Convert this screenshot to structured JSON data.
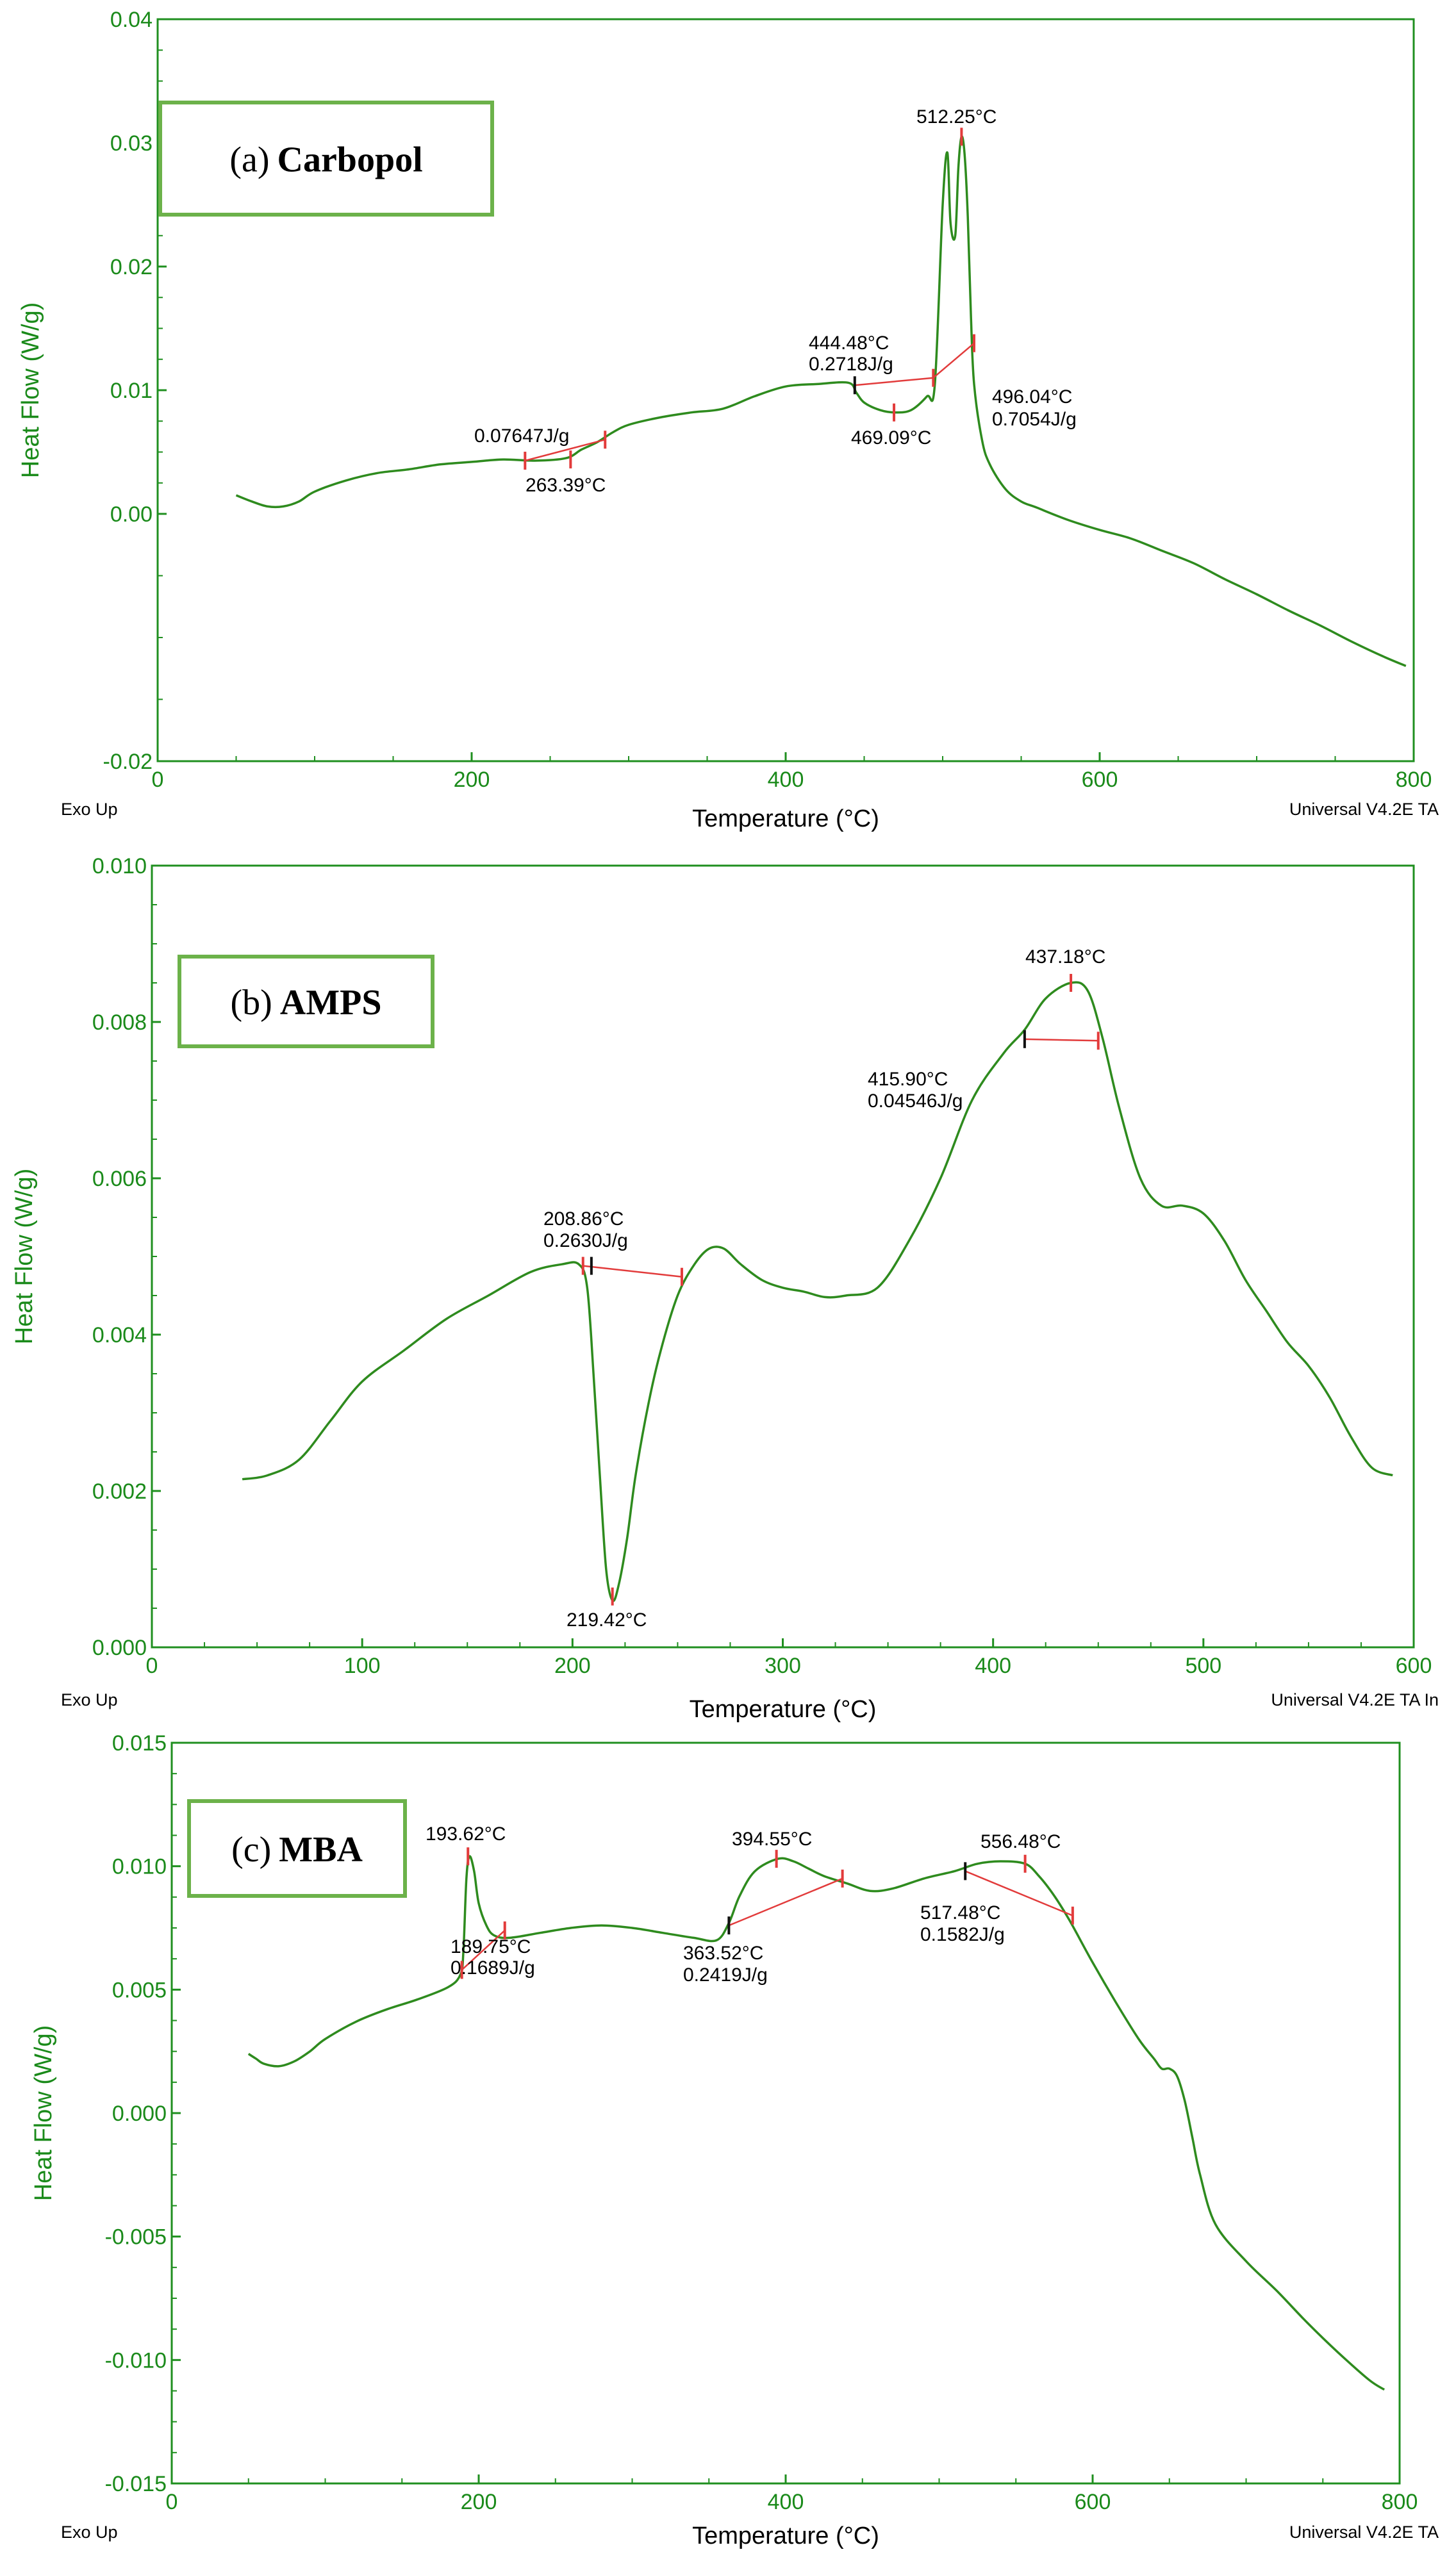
{
  "colors": {
    "curve": "#2e8b1e",
    "axis": "#1f8f1f",
    "axis_text": "#1a8a1a",
    "annotation_line": "#e23b3b",
    "annotation_text": "#000000",
    "title_box": "#6cb24a"
  },
  "chart_data": [
    {
      "type": "line",
      "title": "(a) Carbopol",
      "title_letter": "(a)",
      "title_name": "Carbopol",
      "xlabel": "Temperature (°C)",
      "ylabel": "Heat Flow (W/g)",
      "footer_left": "Exo Up",
      "footer_right": "Universal V4.2E TA",
      "xlim": [
        0,
        800
      ],
      "ylim": [
        -0.02,
        0.04
      ],
      "x_ticks": [
        "0",
        "200",
        "400",
        "600",
        "800"
      ],
      "y_ticks": [
        "-0.02",
        "0.00",
        "0.01",
        "0.02",
        "0.03",
        "0.04"
      ],
      "y_tick_values": [
        -0.02,
        0.0,
        0.01,
        0.02,
        0.03,
        0.04
      ],
      "x_tick_values": [
        0,
        200,
        400,
        600,
        800
      ],
      "series": [
        {
          "name": "Carbopol",
          "x": [
            50,
            60,
            70,
            80,
            90,
            100,
            120,
            140,
            160,
            180,
            200,
            220,
            240,
            260,
            270,
            280,
            290,
            300,
            320,
            340,
            360,
            380,
            400,
            420,
            440,
            445,
            450,
            460,
            470,
            480,
            490,
            495,
            500,
            503,
            505,
            508,
            510,
            512,
            514,
            516,
            518,
            520,
            525,
            530,
            540,
            550,
            560,
            580,
            600,
            620,
            640,
            660,
            680,
            700,
            720,
            740,
            760,
            780,
            795
          ],
          "y": [
            0.0015,
            0.001,
            0.0006,
            0.0006,
            0.001,
            0.0018,
            0.0027,
            0.0033,
            0.0036,
            0.004,
            0.0042,
            0.0044,
            0.0043,
            0.0045,
            0.0052,
            0.0058,
            0.0066,
            0.0072,
            0.0078,
            0.0082,
            0.0085,
            0.0095,
            0.0103,
            0.0105,
            0.0106,
            0.0098,
            0.009,
            0.0084,
            0.0082,
            0.0084,
            0.0095,
            0.0105,
            0.025,
            0.0292,
            0.0235,
            0.0225,
            0.028,
            0.0305,
            0.029,
            0.024,
            0.016,
            0.0105,
            0.006,
            0.004,
            0.002,
            0.001,
            0.0005,
            -0.0005,
            -0.0013,
            -0.002,
            -0.003,
            -0.004,
            -0.0053,
            -0.0065,
            -0.0078,
            -0.009,
            -0.0103,
            -0.0115,
            -0.0123
          ]
        }
      ],
      "annotations": [
        {
          "id": "a1",
          "text": "0.07647J/g",
          "kind": "label"
        },
        {
          "id": "a2",
          "text": "263.39°C",
          "kind": "label"
        },
        {
          "id": "a3",
          "text": "444.48°C",
          "kind": "label"
        },
        {
          "id": "a4",
          "text": "0.2718J/g",
          "kind": "label"
        },
        {
          "id": "a5",
          "text": "469.09°C",
          "kind": "label"
        },
        {
          "id": "a6",
          "text": "512.25°C",
          "kind": "label"
        },
        {
          "id": "a7",
          "text": "496.04°C",
          "kind": "label"
        },
        {
          "id": "a8",
          "text": "0.7054J/g",
          "kind": "label"
        }
      ],
      "integration_lines": [
        {
          "x1": 234,
          "y1": 0.0043,
          "x2": 285,
          "y2": 0.006
        },
        {
          "x1": 444,
          "y1": 0.0104,
          "x2": 494,
          "y2": 0.011
        },
        {
          "x1": 494,
          "y1": 0.011,
          "x2": 520,
          "y2": 0.0138
        }
      ],
      "markers": [
        {
          "x": 234,
          "y": 0.0043,
          "color": "red"
        },
        {
          "x": 263,
          "y": 0.0044,
          "color": "red"
        },
        {
          "x": 285,
          "y": 0.006,
          "color": "red"
        },
        {
          "x": 444,
          "y": 0.0104,
          "color": "black"
        },
        {
          "x": 469,
          "y": 0.0082,
          "color": "red"
        },
        {
          "x": 494,
          "y": 0.011,
          "color": "red"
        },
        {
          "x": 512,
          "y": 0.0305,
          "color": "red"
        },
        {
          "x": 520,
          "y": 0.0138,
          "color": "red"
        }
      ]
    },
    {
      "type": "line",
      "title": "(b) AMPS",
      "title_letter": "(b)",
      "title_name": "AMPS",
      "xlabel": "Temperature (°C)",
      "ylabel": "Heat Flow (W/g)",
      "footer_left": "Exo Up",
      "footer_right": "Universal V4.2E TA In",
      "xlim": [
        0,
        600
      ],
      "ylim": [
        0.0,
        0.01
      ],
      "x_ticks": [
        "0",
        "100",
        "200",
        "300",
        "400",
        "500",
        "600"
      ],
      "y_ticks": [
        "0.000",
        "0.002",
        "0.004",
        "0.006",
        "0.008",
        "0.010"
      ],
      "y_tick_values": [
        0.0,
        0.002,
        0.004,
        0.006,
        0.008,
        0.01
      ],
      "x_tick_values": [
        0,
        100,
        200,
        300,
        400,
        500,
        600
      ],
      "series": [
        {
          "name": "AMPS",
          "x": [
            43,
            55,
            70,
            85,
            100,
            120,
            140,
            160,
            180,
            195,
            203,
            207,
            210,
            213,
            216,
            219,
            222,
            226,
            230,
            236,
            242,
            250,
            258,
            265,
            272,
            280,
            290,
            300,
            310,
            320,
            330,
            345,
            360,
            375,
            390,
            405,
            415,
            425,
            437,
            445,
            452,
            460,
            470,
            480,
            490,
            500,
            510,
            520,
            530,
            540,
            550,
            560,
            570,
            580,
            590
          ],
          "y": [
            0.00215,
            0.0022,
            0.0024,
            0.0029,
            0.0034,
            0.0038,
            0.0042,
            0.0045,
            0.0048,
            0.0049,
            0.0049,
            0.0046,
            0.0035,
            0.0022,
            0.001,
            0.0006,
            0.0008,
            0.0014,
            0.0022,
            0.0031,
            0.0038,
            0.0045,
            0.0049,
            0.0051,
            0.0051,
            0.0049,
            0.0047,
            0.0046,
            0.00455,
            0.00448,
            0.0045,
            0.0046,
            0.0052,
            0.006,
            0.007,
            0.0076,
            0.0079,
            0.0083,
            0.0085,
            0.0084,
            0.0078,
            0.0069,
            0.006,
            0.00565,
            0.00565,
            0.00555,
            0.0052,
            0.0047,
            0.0043,
            0.0039,
            0.0036,
            0.0032,
            0.0027,
            0.0023,
            0.0022
          ]
        }
      ],
      "annotations": [
        {
          "id": "b1",
          "text": "208.86°C",
          "kind": "label"
        },
        {
          "id": "b2",
          "text": "0.2630J/g",
          "kind": "label"
        },
        {
          "id": "b3",
          "text": "219.42°C",
          "kind": "label"
        },
        {
          "id": "b4",
          "text": "437.18°C",
          "kind": "label"
        },
        {
          "id": "b5",
          "text": "415.90°C",
          "kind": "label"
        },
        {
          "id": "b6",
          "text": "0.04546J/g",
          "kind": "label"
        }
      ],
      "integration_lines": [
        {
          "x1": 205,
          "y1": 0.00488,
          "x2": 252,
          "y2": 0.00474
        },
        {
          "x1": 415,
          "y1": 0.00778,
          "x2": 450,
          "y2": 0.00776
        }
      ],
      "markers": [
        {
          "x": 205,
          "y": 0.00488,
          "color": "red"
        },
        {
          "x": 209,
          "y": 0.00488,
          "color": "black"
        },
        {
          "x": 252,
          "y": 0.00474,
          "color": "red"
        },
        {
          "x": 219,
          "y": 0.00065,
          "color": "red"
        },
        {
          "x": 415,
          "y": 0.00778,
          "color": "black"
        },
        {
          "x": 437,
          "y": 0.0085,
          "color": "red"
        },
        {
          "x": 450,
          "y": 0.00776,
          "color": "red"
        }
      ]
    },
    {
      "type": "line",
      "title": "(c) MBA",
      "title_letter": "(c)",
      "title_name": "MBA",
      "xlabel": "Temperature (°C)",
      "ylabel": "Heat Flow (W/g)",
      "footer_left": "Exo Up",
      "footer_right": "Universal V4.2E TA",
      "xlim": [
        0,
        800
      ],
      "ylim": [
        -0.015,
        0.015
      ],
      "x_ticks": [
        "0",
        "200",
        "400",
        "600",
        "800"
      ],
      "y_ticks": [
        "-0.015",
        "-0.010",
        "-0.005",
        "0.000",
        "0.005",
        "0.010",
        "0.015"
      ],
      "y_tick_values": [
        -0.015,
        -0.01,
        -0.005,
        0.0,
        0.005,
        0.01,
        0.015
      ],
      "x_tick_values": [
        0,
        200,
        400,
        600,
        800
      ],
      "series": [
        {
          "name": "MBA",
          "x": [
            50,
            55,
            60,
            70,
            80,
            90,
            100,
            120,
            140,
            160,
            180,
            188,
            190,
            192,
            194,
            197,
            200,
            205,
            210,
            220,
            240,
            260,
            280,
            300,
            320,
            340,
            355,
            363,
            370,
            380,
            395,
            405,
            415,
            425,
            440,
            455,
            470,
            490,
            510,
            525,
            540,
            556,
            565,
            575,
            585,
            600,
            615,
            630,
            640,
            645,
            650,
            655,
            660,
            665,
            670,
            680,
            700,
            720,
            740,
            760,
            780,
            790
          ],
          "y": [
            0.0024,
            0.0022,
            0.002,
            0.0019,
            0.0021,
            0.0025,
            0.003,
            0.0037,
            0.0042,
            0.0046,
            0.0051,
            0.0056,
            0.0065,
            0.0095,
            0.0104,
            0.0098,
            0.0085,
            0.0076,
            0.0072,
            0.0071,
            0.0073,
            0.0075,
            0.0076,
            0.0075,
            0.0073,
            0.0071,
            0.007,
            0.0077,
            0.0088,
            0.0098,
            0.0103,
            0.0102,
            0.0099,
            0.0096,
            0.0093,
            0.009,
            0.0091,
            0.0095,
            0.0098,
            0.0101,
            0.0102,
            0.0101,
            0.0096,
            0.0088,
            0.0078,
            0.0061,
            0.0045,
            0.003,
            0.0022,
            0.0018,
            0.0018,
            0.0015,
            0.0005,
            -0.001,
            -0.0025,
            -0.0045,
            -0.006,
            -0.0072,
            -0.0085,
            -0.0097,
            -0.0108,
            -0.0112
          ]
        }
      ],
      "annotations": [
        {
          "id": "c1",
          "text": "193.62°C",
          "kind": "label"
        },
        {
          "id": "c2",
          "text": "189.75°C",
          "kind": "label"
        },
        {
          "id": "c3",
          "text": "0.1689J/g",
          "kind": "label"
        },
        {
          "id": "c4",
          "text": "394.55°C",
          "kind": "label"
        },
        {
          "id": "c5",
          "text": "363.52°C",
          "kind": "label"
        },
        {
          "id": "c6",
          "text": "0.2419J/g",
          "kind": "label"
        },
        {
          "id": "c7",
          "text": "556.48°C",
          "kind": "label"
        },
        {
          "id": "c8",
          "text": "517.48°C",
          "kind": "label"
        },
        {
          "id": "c9",
          "text": "0.1582J/g",
          "kind": "label"
        }
      ],
      "integration_lines": [
        {
          "x1": 189,
          "y1": 0.0058,
          "x2": 217,
          "y2": 0.0074
        },
        {
          "x1": 363,
          "y1": 0.0076,
          "x2": 437,
          "y2": 0.0095
        },
        {
          "x1": 517,
          "y1": 0.0098,
          "x2": 587,
          "y2": 0.008
        }
      ],
      "markers": [
        {
          "x": 189,
          "y": 0.0058,
          "color": "red"
        },
        {
          "x": 193,
          "y": 0.0104,
          "color": "red"
        },
        {
          "x": 217,
          "y": 0.0074,
          "color": "red"
        },
        {
          "x": 363,
          "y": 0.0076,
          "color": "black"
        },
        {
          "x": 394,
          "y": 0.0103,
          "color": "red"
        },
        {
          "x": 437,
          "y": 0.0095,
          "color": "red"
        },
        {
          "x": 517,
          "y": 0.0098,
          "color": "black"
        },
        {
          "x": 556,
          "y": 0.0101,
          "color": "red"
        },
        {
          "x": 587,
          "y": 0.008,
          "color": "red"
        }
      ]
    }
  ]
}
